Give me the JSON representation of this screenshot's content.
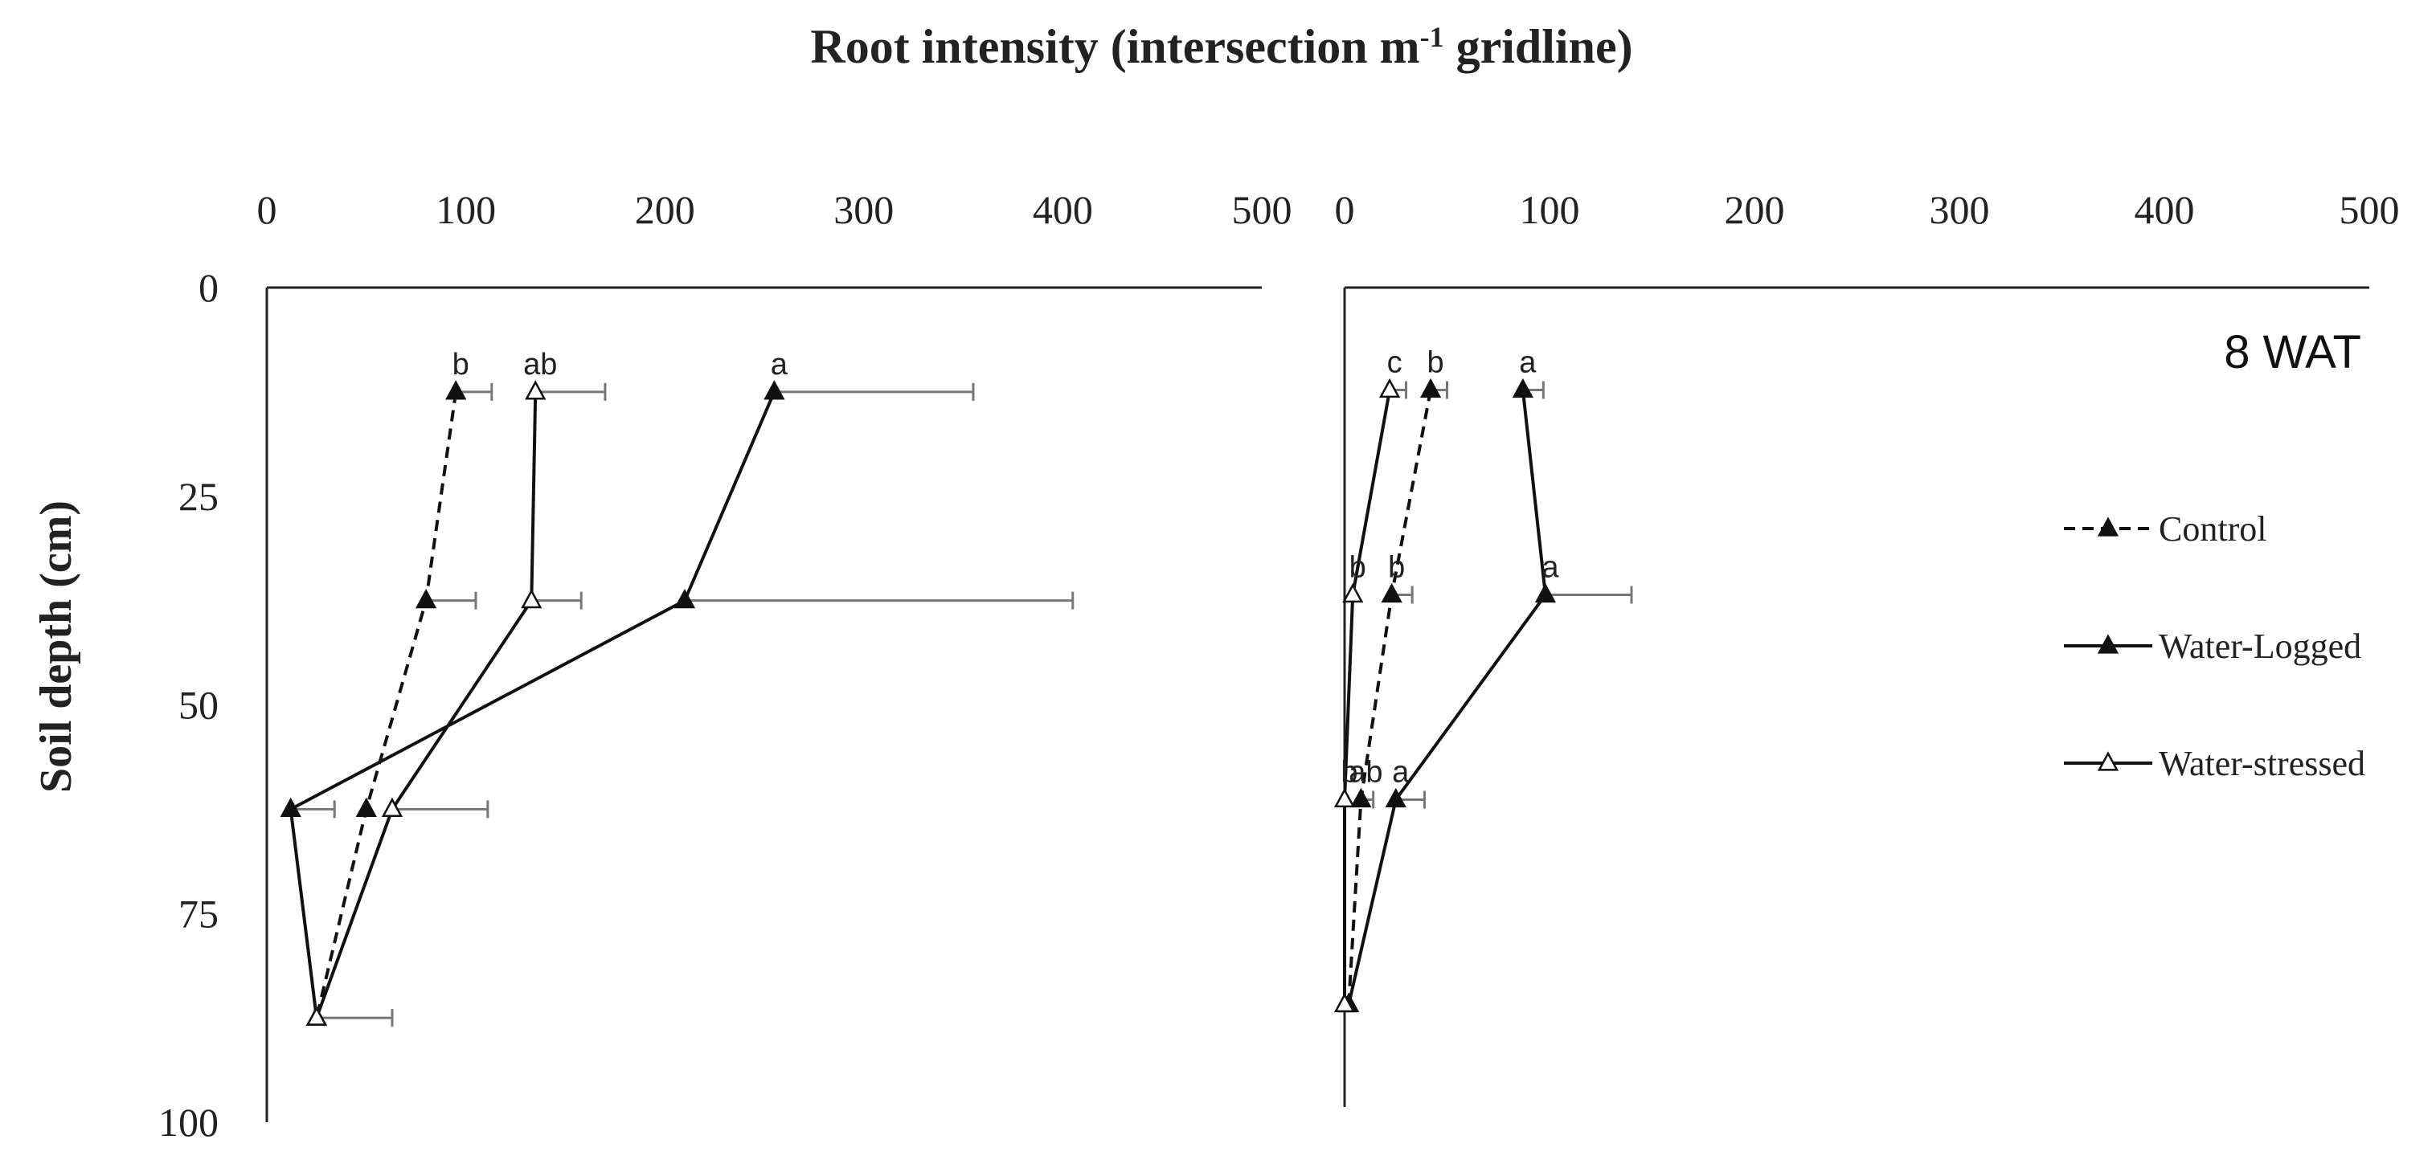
{
  "chart_data": {
    "type": "line",
    "title": "Root intensity (intersection m",
    "title_sup": "-1",
    "title_tail": " gridline)",
    "ylabel": "Soil depth (cm)",
    "x_ticks": [
      "0",
      "100",
      "200",
      "300",
      "400",
      "500"
    ],
    "y_ticks": [
      "0",
      "25",
      "50",
      "75",
      "100"
    ],
    "xlim": [
      0,
      500
    ],
    "ylim": [
      0,
      100
    ],
    "legend": [
      "Control",
      "Water-Logged",
      "Water-stressed"
    ],
    "panels": [
      {
        "label": "",
        "series": [
          {
            "name": "Control",
            "style": "dashed",
            "marker": "filled",
            "x": [
              95,
              80,
              50,
              25
            ],
            "y": [
              12.5,
              37.5,
              62.5,
              87.5
            ],
            "err": [
              18,
              25,
              0,
              0
            ],
            "labels": [
              "b",
              "",
              "",
              ""
            ]
          },
          {
            "name": "Water-Logged",
            "style": "solid",
            "marker": "filled",
            "x": [
              255,
              210,
              12,
              25
            ],
            "y": [
              12.5,
              37.5,
              62.5,
              87.5
            ],
            "err": [
              100,
              195,
              22,
              38
            ],
            "labels": [
              "a",
              "",
              "",
              ""
            ]
          },
          {
            "name": "Water-stressed",
            "style": "solid",
            "marker": "open",
            "x": [
              135,
              133,
              63,
              25
            ],
            "y": [
              12.5,
              37.5,
              62.5,
              87.5
            ],
            "err": [
              35,
              25,
              48,
              0
            ],
            "labels": [
              "ab",
              "",
              "",
              ""
            ]
          }
        ]
      },
      {
        "label": "8 WAT",
        "series": [
          {
            "name": "Control",
            "style": "dashed",
            "marker": "filled",
            "x": [
              42,
              23,
              8,
              2
            ],
            "y": [
              12.5,
              37.5,
              62.5,
              87.5
            ],
            "err": [
              8,
              10,
              6,
              0
            ],
            "labels": [
              "b",
              "b",
              "ab",
              ""
            ]
          },
          {
            "name": "Water-Logged",
            "style": "solid",
            "marker": "filled",
            "x": [
              87,
              98,
              25,
              2
            ],
            "y": [
              12.5,
              37.5,
              62.5,
              87.5
            ],
            "err": [
              10,
              42,
              14,
              0
            ],
            "labels": [
              "a",
              "a",
              "a",
              ""
            ]
          },
          {
            "name": "Water-stressed",
            "style": "solid",
            "marker": "open",
            "x": [
              22,
              4,
              0,
              0
            ],
            "y": [
              12.5,
              37.5,
              62.5,
              87.5
            ],
            "err": [
              8,
              0,
              0,
              0
            ],
            "labels": [
              "c",
              "b",
              "b",
              ""
            ]
          }
        ]
      }
    ]
  }
}
